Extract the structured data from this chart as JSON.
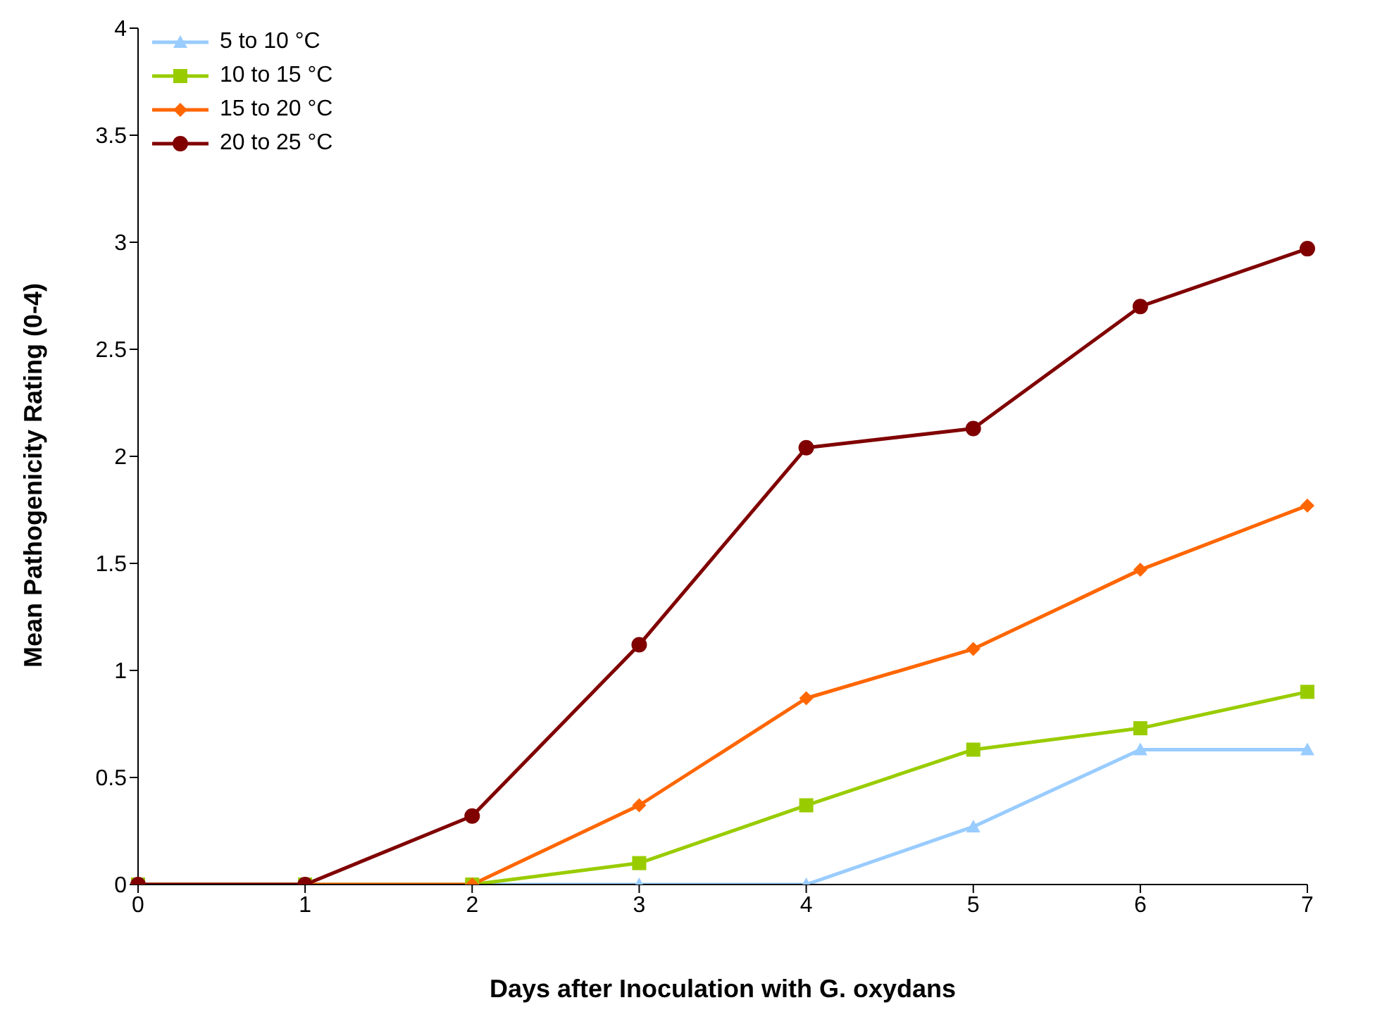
{
  "chart_data": {
    "type": "line",
    "xlabel": "Days after Inoculation with G. oxydans",
    "ylabel": "Mean Pathogenicity Rating (0-4)",
    "categories": [
      "0",
      "1",
      "2",
      "3",
      "4",
      "5",
      "6",
      "7"
    ],
    "ylim": [
      0,
      4
    ],
    "yticks": [
      0,
      0.5,
      1,
      1.5,
      2,
      2.5,
      3,
      3.5,
      4
    ],
    "grid": false,
    "legend": "top left",
    "series": [
      {
        "name": "5 to 10 °C",
        "color": "#99ccff",
        "marker": "triangle",
        "values": [
          0,
          0,
          0,
          0,
          0,
          0.27,
          0.63,
          0.63
        ]
      },
      {
        "name": "10 to 15 °C",
        "color": "#99cc00",
        "marker": "square",
        "values": [
          0,
          0,
          0,
          0.1,
          0.37,
          0.63,
          0.73,
          0.9
        ]
      },
      {
        "name": "15 to 20 °C",
        "color": "#ff6600",
        "marker": "diamond",
        "values": [
          0,
          0,
          0,
          0.37,
          0.87,
          1.1,
          1.47,
          1.77
        ]
      },
      {
        "name": "20 to 25 °C",
        "color": "#800000",
        "marker": "circle",
        "values": [
          0,
          0,
          0.32,
          1.12,
          2.04,
          2.13,
          2.7,
          2.97
        ]
      }
    ]
  }
}
